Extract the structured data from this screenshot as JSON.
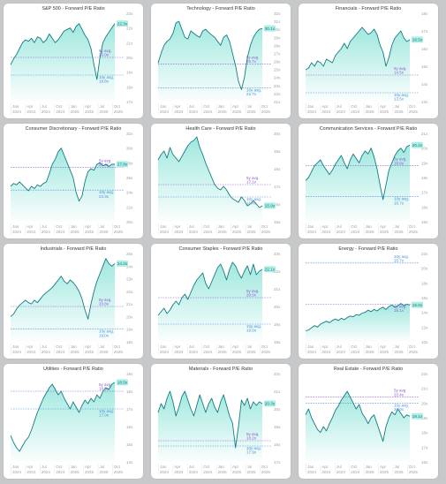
{
  "colors": {
    "line": "#127c82",
    "fill": "#7fe0d3",
    "avg5": "#8f5bd2",
    "avg10": "#4a8fd8",
    "label_bg": "#aeeee4",
    "tick": "#999999"
  },
  "x_ticks": [
    {
      "top": "Jan",
      "bottom": "2024"
    },
    {
      "top": "Apr",
      "bottom": "2024"
    },
    {
      "top": "Jul",
      "bottom": "2024"
    },
    {
      "top": "Oct",
      "bottom": "2024"
    },
    {
      "top": "Jan",
      "bottom": "2025"
    },
    {
      "top": "Apr",
      "bottom": "2025"
    },
    {
      "top": "Jul",
      "bottom": "2025"
    },
    {
      "top": "Oct",
      "bottom": "2025"
    }
  ],
  "chart_data": [
    {
      "type": "line",
      "title": "S&P 500 - Forward P/E Ratio",
      "ylim": [
        17,
        23
      ],
      "yticks": [
        "23x",
        "22x",
        "21x",
        "20x",
        "19x",
        "18x",
        "17x"
      ],
      "current_label": "22.3x",
      "current": 22.3,
      "avg5_label": "5y avg.",
      "avg5_value": "20.0x",
      "avg5": 20.0,
      "avg10_label": "10y avg.",
      "avg10_value": "18.8x",
      "avg10": 18.8,
      "series": [
        19.5,
        19.9,
        20.2,
        20.6,
        21.0,
        21.2,
        21.1,
        21.3,
        21.0,
        21.4,
        21.3,
        21.0,
        21.2,
        21.6,
        21.3,
        21.0,
        21.2,
        21.5,
        21.8,
        21.9,
        22.0,
        21.7,
        22.1,
        22.3,
        21.9,
        21.5,
        21.2,
        20.6,
        19.5,
        18.5,
        20.0,
        21.0,
        21.4,
        21.7,
        22.0,
        22.3
      ]
    },
    {
      "type": "line",
      "title": "Technology - Forward P/E Ratio",
      "ylim": [
        21,
        32
      ],
      "yticks": [
        "32x",
        "31x",
        "30x",
        "29x",
        "28x",
        "27x",
        "26x",
        "25x",
        "24x",
        "23x",
        "22x",
        "21x"
      ],
      "current_label": "30.1x",
      "current": 30.1,
      "avg5_label": "5y avg.",
      "avg5_value": "25.7x",
      "avg5": 25.7,
      "avg10_label": "10y avg.",
      "avg10_value": "22.7x",
      "avg10": 22.7,
      "series": [
        25.8,
        27.0,
        28.0,
        28.5,
        28.8,
        29.5,
        30.8,
        31.0,
        30.0,
        29.0,
        28.8,
        29.8,
        29.5,
        29.2,
        29.0,
        29.8,
        30.0,
        29.6,
        29.3,
        29.0,
        28.5,
        28.0,
        29.0,
        29.3,
        28.5,
        27.0,
        25.5,
        23.5,
        22.5,
        24.0,
        26.5,
        28.0,
        29.0,
        29.6,
        30.0,
        30.1
      ]
    },
    {
      "type": "line",
      "title": "Financials - Forward P/E Ratio",
      "ylim": [
        13,
        18
      ],
      "yticks": [
        "18x",
        "17x",
        "16x",
        "15x",
        "14x",
        "13x"
      ],
      "current_label": "16.5x",
      "current": 16.5,
      "avg5_label": "5y avg.",
      "avg5_value": "14.5x",
      "avg5": 14.5,
      "avg10_label": "10y avg.",
      "avg10_value": "13.5x",
      "avg10": 13.5,
      "series": [
        14.8,
        14.9,
        15.2,
        15.0,
        15.3,
        15.2,
        15.0,
        15.4,
        15.3,
        15.2,
        15.6,
        15.8,
        16.0,
        16.3,
        16.0,
        16.4,
        16.6,
        16.8,
        17.0,
        17.2,
        17.0,
        16.8,
        16.9,
        17.1,
        16.8,
        16.2,
        15.8,
        15.0,
        15.5,
        16.2,
        16.6,
        16.8,
        17.0,
        16.6,
        16.4,
        16.5
      ]
    },
    {
      "type": "line",
      "title": "Consumer Discretionary - Forward P/E Ratio",
      "ylim": [
        20,
        32
      ],
      "yticks": [
        "32x",
        "30x",
        "28x",
        "26x",
        "24x",
        "22x",
        "20x"
      ],
      "current_label": "27.8x",
      "current": 27.8,
      "avg5_label": "5y avg.",
      "avg5_value": "27.4x",
      "avg5": 27.4,
      "avg10_label": "10y avg.",
      "avg10_value": "24.3x",
      "avg10": 24.3,
      "series": [
        24.8,
        25.2,
        25.0,
        25.4,
        25.0,
        24.6,
        24.2,
        24.8,
        24.5,
        25.0,
        24.8,
        25.2,
        25.4,
        26.5,
        27.8,
        28.5,
        29.5,
        30.0,
        29.0,
        28.0,
        27.0,
        26.0,
        24.0,
        22.8,
        23.5,
        25.5,
        26.8,
        27.2,
        27.0,
        27.8,
        28.0,
        27.6,
        27.8,
        27.5,
        27.8,
        27.8
      ]
    },
    {
      "type": "line",
      "title": "Health Care - Forward P/E Ratio",
      "ylim": [
        15,
        20
      ],
      "yticks": [
        "20x",
        "19x",
        "18x",
        "17x",
        "16x",
        "15x"
      ],
      "current_label": "15.9x",
      "current": 15.9,
      "avg5_label": "5y avg.",
      "avg5_value": "17.1x",
      "avg5": 17.1,
      "avg10_label": "10y avg.",
      "avg10_value": "16.4x",
      "avg10": 16.4,
      "series": [
        18.5,
        18.8,
        19.0,
        18.6,
        19.2,
        18.8,
        18.6,
        18.4,
        18.7,
        19.0,
        19.3,
        19.5,
        19.6,
        19.8,
        19.2,
        18.8,
        18.3,
        17.9,
        17.5,
        17.1,
        16.9,
        16.8,
        17.0,
        16.8,
        16.5,
        16.3,
        16.2,
        16.1,
        16.4,
        16.2,
        15.9,
        16.0,
        16.2,
        16.0,
        15.8,
        15.9
      ]
    },
    {
      "type": "line",
      "title": "Communication Services - Forward P/E Ratio",
      "ylim": [
        15,
        21
      ],
      "yticks": [
        "21x",
        "20x",
        "19x",
        "18x",
        "17x",
        "16x",
        "15x"
      ],
      "current_label": "20.2x",
      "current": 20.2,
      "avg5_label": "5y avg.",
      "avg5_value": "18.8x",
      "avg5": 18.8,
      "avg10_label": "10y avg.",
      "avg10_value": "16.7x",
      "avg10": 16.7,
      "series": [
        17.8,
        18.0,
        18.4,
        18.8,
        19.0,
        19.2,
        18.8,
        18.5,
        18.2,
        18.5,
        18.9,
        19.2,
        19.5,
        19.0,
        18.6,
        19.2,
        19.6,
        19.3,
        19.0,
        19.5,
        19.8,
        19.6,
        20.0,
        19.4,
        18.6,
        17.5,
        16.5,
        17.5,
        18.5,
        19.0,
        19.5,
        19.8,
        20.0,
        19.7,
        20.1,
        20.2
      ]
    },
    {
      "type": "line",
      "title": "Industrials - Forward P/E Ratio",
      "ylim": [
        18,
        25
      ],
      "yticks": [
        "25x",
        "24x",
        "23x",
        "22x",
        "21x",
        "20x",
        "19x",
        "18x"
      ],
      "current_label": "24.2x",
      "current": 24.2,
      "avg5_label": "5y avg.",
      "avg5_value": "20.8x",
      "avg5": 20.8,
      "avg10_label": "10y avg.",
      "avg10_value": "19.0x",
      "avg10": 19.0,
      "series": [
        20.0,
        20.2,
        20.6,
        20.9,
        21.1,
        21.3,
        21.1,
        21.0,
        21.3,
        21.1,
        21.4,
        21.7,
        21.9,
        22.1,
        22.3,
        22.6,
        22.9,
        23.2,
        22.8,
        22.6,
        22.9,
        22.7,
        22.4,
        22.0,
        21.4,
        20.5,
        19.8,
        21.0,
        22.0,
        22.8,
        23.4,
        24.0,
        24.6,
        24.2,
        24.0,
        24.2
      ]
    },
    {
      "type": "line",
      "title": "Consumer Staples - Forward P/E Ratio",
      "ylim": [
        18,
        23
      ],
      "yticks": [
        "23x",
        "22x",
        "21x",
        "20x",
        "19x",
        "18x"
      ],
      "current_label": "22.1x",
      "current": 22.1,
      "avg5_label": "5y avg.",
      "avg5_value": "20.5x",
      "avg5": 20.5,
      "avg10_label": "10y avg.",
      "avg10_value": "19.0x",
      "avg10": 19.0,
      "series": [
        19.5,
        19.7,
        19.9,
        19.6,
        19.8,
        20.1,
        20.3,
        20.1,
        20.5,
        20.7,
        20.4,
        20.8,
        21.2,
        21.5,
        21.7,
        21.9,
        21.3,
        21.0,
        21.4,
        21.8,
        22.2,
        22.4,
        22.0,
        21.5,
        22.1,
        22.5,
        22.3,
        21.9,
        21.6,
        22.0,
        22.3,
        21.8,
        22.4,
        21.8,
        22.0,
        22.1
      ]
    },
    {
      "type": "line",
      "title": "Energy - Forward P/E Ratio",
      "ylim": [
        10,
        22
      ],
      "yticks": [
        "22x",
        "20x",
        "18x",
        "16x",
        "14x",
        "12x",
        "10x"
      ],
      "current_label": "15.0x",
      "current": 15.0,
      "avg5_label": "5y avg.",
      "avg5_value": "15.1x",
      "avg5": 15.1,
      "avg10_label": "10y avg.",
      "avg10_value": "20.7x",
      "avg10": 20.7,
      "series": [
        11.5,
        11.6,
        11.9,
        12.2,
        12.0,
        12.4,
        12.6,
        12.8,
        12.6,
        12.9,
        13.1,
        12.9,
        13.2,
        13.0,
        13.3,
        13.5,
        13.4,
        13.7,
        13.6,
        13.9,
        14.0,
        14.3,
        14.1,
        14.4,
        14.2,
        14.5,
        14.7,
        14.4,
        14.8,
        15.0,
        14.7,
        14.9,
        15.2,
        14.9,
        15.1,
        15.0
      ]
    },
    {
      "type": "line",
      "title": "Utilities - Forward P/E Ratio",
      "ylim": [
        14,
        19
      ],
      "yticks": [
        "19x",
        "18x",
        "17x",
        "16x",
        "15x",
        "14x"
      ],
      "current_label": "18.5x",
      "current": 18.5,
      "avg5_label": "5y avg.",
      "avg5_value": "18.0x",
      "avg5": 18.0,
      "avg10_label": "10y avg.",
      "avg10_value": "17.0x",
      "avg10": 17.0,
      "series": [
        15.5,
        15.1,
        14.8,
        14.6,
        14.9,
        15.2,
        15.4,
        15.8,
        16.3,
        16.8,
        17.2,
        17.6,
        17.9,
        18.2,
        18.4,
        18.1,
        17.8,
        18.0,
        17.6,
        17.3,
        17.0,
        17.4,
        17.1,
        16.8,
        17.2,
        17.5,
        17.3,
        17.6,
        17.4,
        17.8,
        17.6,
        18.0,
        18.2,
        18.1,
        18.4,
        18.5
      ]
    },
    {
      "type": "line",
      "title": "Materials - Forward P/E Ratio",
      "ylim": [
        17,
        22
      ],
      "yticks": [
        "22x",
        "21x",
        "20x",
        "19x",
        "18x",
        "17x"
      ],
      "current_label": "20.3x",
      "current": 20.3,
      "avg5_label": "5y avg.",
      "avg5_value": "18.2x",
      "avg5": 18.2,
      "avg10_label": "10y avg.",
      "avg10_value": "17.9x",
      "avg10": 17.9,
      "series": [
        19.8,
        20.3,
        20.0,
        20.6,
        21.0,
        20.4,
        19.6,
        20.1,
        20.7,
        21.0,
        20.5,
        20.0,
        19.6,
        20.2,
        20.8,
        20.3,
        19.8,
        20.3,
        20.6,
        20.1,
        19.8,
        20.4,
        20.8,
        20.2,
        19.6,
        19.2,
        17.8,
        19.0,
        20.5,
        20.2,
        20.6,
        20.0,
        20.4,
        20.2,
        20.4,
        20.3
      ]
    },
    {
      "type": "line",
      "title": "Real Estate - Forward P/E Ratio",
      "ylim": [
        16,
        22
      ],
      "yticks": [
        "22x",
        "21x",
        "20x",
        "19x",
        "18x",
        "17x",
        "16x"
      ],
      "current_label": "19.1x",
      "current": 19.1,
      "avg5_label": "5y avg.",
      "avg5_value": "20.4x",
      "avg5": 20.4,
      "avg10_label": "10y avg.",
      "avg10_value": "20.0x",
      "avg10": 20.0,
      "series": [
        19.2,
        19.6,
        19.0,
        18.6,
        18.2,
        18.0,
        18.4,
        18.1,
        18.6,
        19.0,
        19.5,
        19.8,
        20.2,
        20.5,
        20.8,
        20.4,
        20.0,
        19.6,
        19.9,
        19.3,
        19.0,
        18.6,
        19.0,
        19.2,
        18.6,
        18.0,
        17.4,
        18.4,
        19.0,
        19.4,
        19.2,
        19.6,
        19.3,
        19.0,
        19.2,
        19.1
      ]
    }
  ]
}
